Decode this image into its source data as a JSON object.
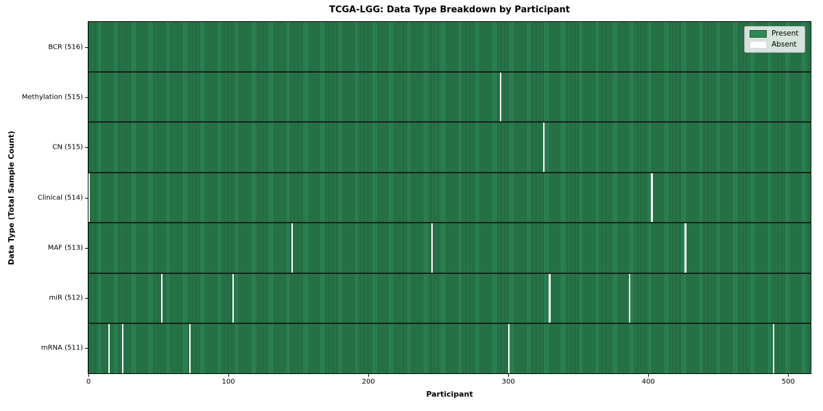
{
  "chart_data": {
    "type": "heatmap",
    "title": "TCGA-LGG: Data Type Breakdown by Participant",
    "xlabel": "Participant",
    "ylabel": "Data Type (Total Sample Count)",
    "x_ticks": [
      0,
      100,
      200,
      300,
      400,
      500
    ],
    "n_participants": 516,
    "legend": [
      "Present",
      "Absent"
    ],
    "legend_position": "upper right",
    "colors": {
      "present": "#2e8b57",
      "present_edge": "#1e5434",
      "absent": "#ffffff",
      "row_divider": "#14241a",
      "spine": "#000000"
    },
    "rows": [
      {
        "label": "BCR (516)",
        "total": 516,
        "absent_participants": []
      },
      {
        "label": "Methylation (515)",
        "total": 515,
        "absent_participants": [
          294
        ]
      },
      {
        "label": "CN (515)",
        "total": 515,
        "absent_participants": [
          325
        ]
      },
      {
        "label": "Clinical (514)",
        "total": 514,
        "absent_participants": [
          0,
          402
        ]
      },
      {
        "label": "MAF (513)",
        "total": 513,
        "absent_participants": [
          145,
          245,
          426
        ]
      },
      {
        "label": "miR (512)",
        "total": 512,
        "absent_participants": [
          52,
          103,
          329,
          386
        ]
      },
      {
        "label": "mRNA (511)",
        "total": 511,
        "absent_participants": [
          14,
          24,
          72,
          300,
          489
        ]
      }
    ]
  }
}
